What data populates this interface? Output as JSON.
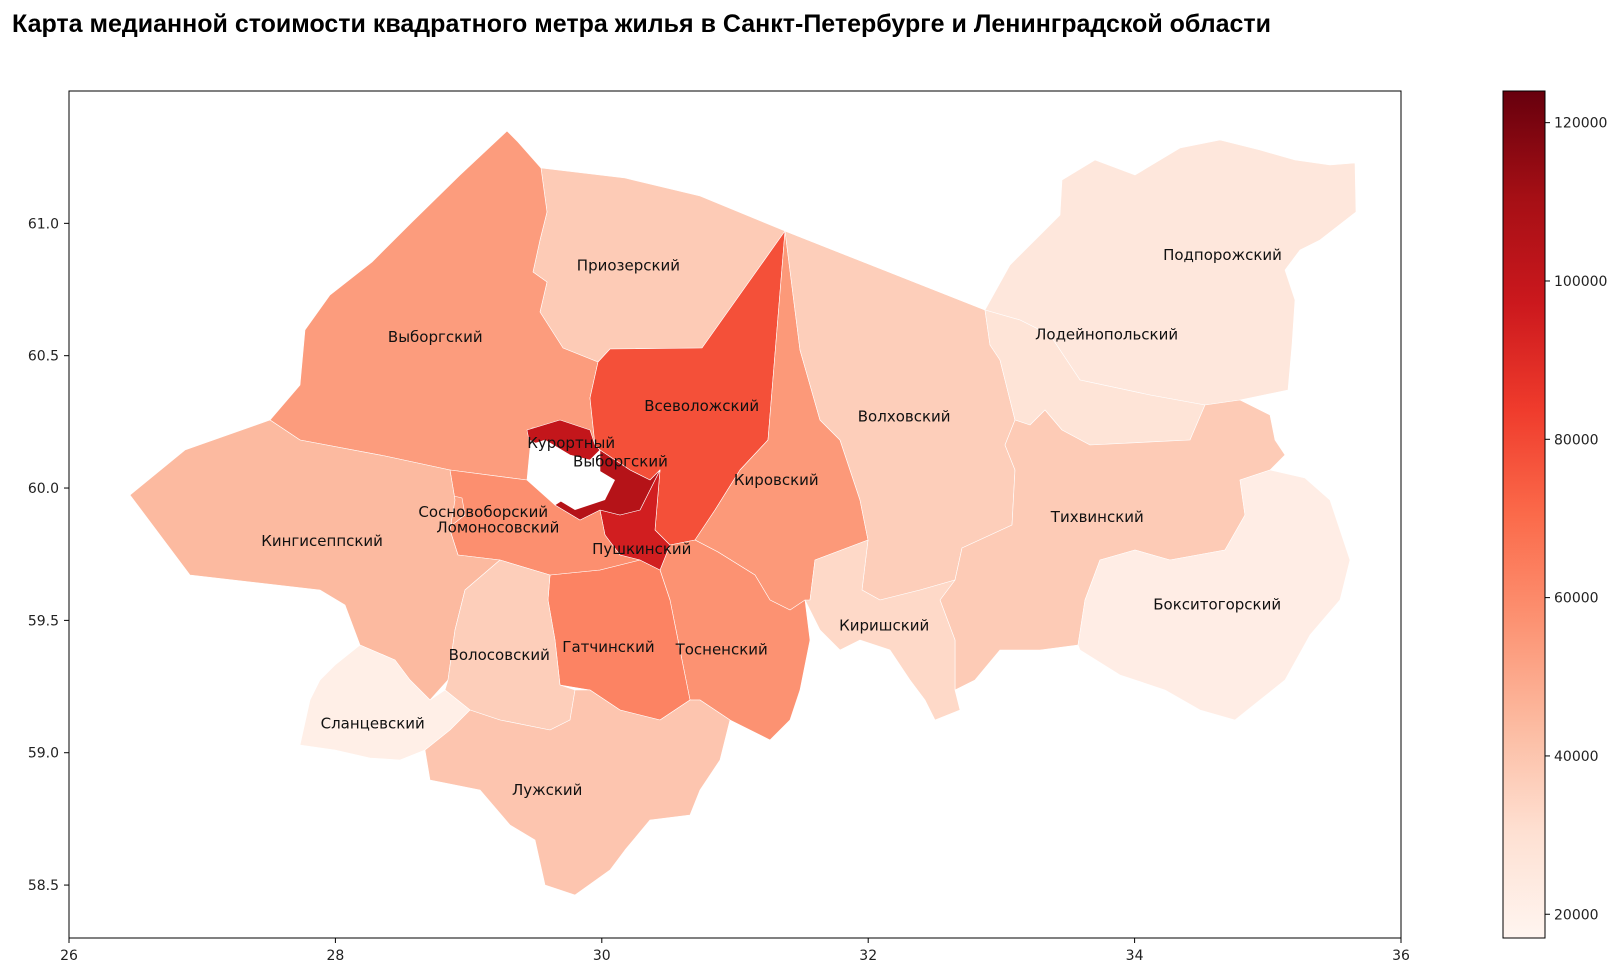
{
  "title": "Карта медианной стоимости квадратного метра жилья в Санкт-Петербурге и Ленинградской области",
  "chart_data": {
    "type": "choropleth",
    "colormap": "Reds",
    "xlim": [
      26,
      36
    ],
    "ylim": [
      58.3,
      61.5
    ],
    "x_ticks": [
      26,
      28,
      30,
      32,
      34,
      36
    ],
    "y_ticks": [
      58.5,
      59.0,
      59.5,
      60.0,
      60.5,
      61.0
    ],
    "x_tick_labels": [
      "26",
      "28",
      "30",
      "32",
      "34",
      "36"
    ],
    "y_tick_labels": [
      "58.5",
      "59.0",
      "59.5",
      "60.0",
      "60.5",
      "61.0"
    ],
    "colorbar": {
      "min": 17000,
      "max": 124000,
      "ticks": [
        20000,
        40000,
        60000,
        80000,
        100000,
        120000
      ],
      "tick_labels": [
        "20000",
        "40000",
        "60000",
        "80000",
        "100000",
        "120000"
      ]
    },
    "regions": [
      {
        "name": "Приозерский",
        "value": 38000,
        "label_lon": 30.2,
        "label_lat": 60.84
      },
      {
        "name": "Выборгский",
        "value": 54000,
        "label_lon": 28.75,
        "label_lat": 60.57
      },
      {
        "name": "Всеволожский",
        "value": 78000,
        "label_lon": 30.75,
        "label_lat": 60.31
      },
      {
        "name": "Курортный",
        "value": 100000,
        "label_lon": 29.77,
        "label_lat": 60.17
      },
      {
        "name": "Выборгский",
        "value": 105000,
        "label_lon": 30.14,
        "label_lat": 60.1
      },
      {
        "name": "Кировский",
        "value": 55000,
        "label_lon": 31.31,
        "label_lat": 60.03
      },
      {
        "name": "Волховский",
        "value": 37000,
        "label_lon": 32.27,
        "label_lat": 60.27
      },
      {
        "name": "Подпорожский",
        "value": 26000,
        "label_lon": 34.66,
        "label_lat": 60.88
      },
      {
        "name": "Лодейнопольский",
        "value": 28000,
        "label_lon": 33.79,
        "label_lat": 60.58
      },
      {
        "name": "Тихвинский",
        "value": 38000,
        "label_lon": 33.72,
        "label_lat": 59.89
      },
      {
        "name": "Бокситогорский",
        "value": 22000,
        "label_lon": 34.62,
        "label_lat": 59.56
      },
      {
        "name": "Киришский",
        "value": 33000,
        "label_lon": 32.12,
        "label_lat": 59.48
      },
      {
        "name": "Тосненский",
        "value": 57000,
        "label_lon": 30.9,
        "label_lat": 59.39
      },
      {
        "name": "Гатчинский",
        "value": 62000,
        "label_lon": 30.05,
        "label_lat": 59.4
      },
      {
        "name": "Пушкинский",
        "value": 95000,
        "label_lon": 30.3,
        "label_lat": 59.77
      },
      {
        "name": "Ломоносовский",
        "value": 58000,
        "label_lon": 29.22,
        "label_lat": 59.85
      },
      {
        "name": "Сосновоборский",
        "value": 52000,
        "label_lon": 29.11,
        "label_lat": 59.91
      },
      {
        "name": "Кингисеппский",
        "value": 44000,
        "label_lon": 27.9,
        "label_lat": 59.8
      },
      {
        "name": "Волосовский",
        "value": 37000,
        "label_lon": 29.23,
        "label_lat": 59.37
      },
      {
        "name": "Сланцевский",
        "value": 21000,
        "label_lon": 28.28,
        "label_lat": 59.11
      },
      {
        "name": "Лужский",
        "value": 40000,
        "label_lon": 29.59,
        "label_lat": 58.86
      }
    ]
  }
}
